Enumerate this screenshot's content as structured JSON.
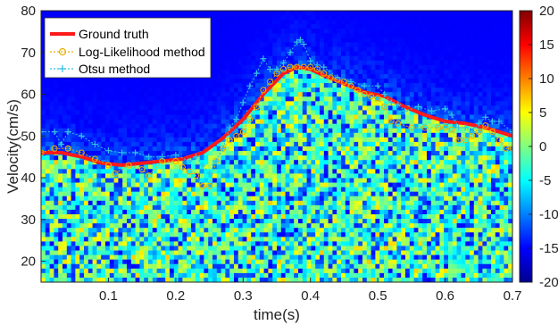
{
  "chart_data": {
    "type": "line",
    "background": "spectrogram heatmap",
    "xlabel": "time(s)",
    "ylabel": "Velocity(cm/s)",
    "xlim": [
      0.0,
      0.7
    ],
    "ylim": [
      15,
      80
    ],
    "x_ticks": [
      0.1,
      0.2,
      0.3,
      0.4,
      0.5,
      0.6,
      0.7
    ],
    "y_ticks": [
      20,
      30,
      40,
      50,
      60,
      70,
      80
    ],
    "colorbar": {
      "range": [
        -20,
        20
      ],
      "ticks": [
        20,
        15,
        10,
        5,
        0,
        -5,
        -10,
        -15,
        -20
      ],
      "colormap": "jet"
    },
    "legend_position": "top-left",
    "series": [
      {
        "name": "Ground truth",
        "color": "#ff1a1a",
        "style": "thick-line",
        "x": [
          0.0,
          0.03,
          0.06,
          0.09,
          0.12,
          0.15,
          0.18,
          0.21,
          0.24,
          0.27,
          0.3,
          0.33,
          0.36,
          0.38,
          0.4,
          0.42,
          0.45,
          0.48,
          0.51,
          0.54,
          0.57,
          0.6,
          0.63,
          0.66,
          0.7
        ],
        "y": [
          46,
          46,
          45,
          43.5,
          43,
          43.5,
          44,
          44.5,
          46,
          49.5,
          54,
          60,
          65,
          66.5,
          66,
          64.5,
          62.5,
          60.5,
          59.5,
          57,
          55,
          53.5,
          53,
          52,
          50
        ]
      },
      {
        "name": "Log-Likelihood method",
        "color": "#e8b000",
        "style": "circle-markers",
        "x": [
          0.0,
          0.02,
          0.04,
          0.06,
          0.08,
          0.1,
          0.11,
          0.13,
          0.15,
          0.16,
          0.18,
          0.2,
          0.21,
          0.22,
          0.23,
          0.24,
          0.25,
          0.26,
          0.27,
          0.28,
          0.29,
          0.3,
          0.31,
          0.32,
          0.33,
          0.34,
          0.35,
          0.36,
          0.37,
          0.38,
          0.39,
          0.4,
          0.41,
          0.42,
          0.43,
          0.44,
          0.45,
          0.46,
          0.47,
          0.48,
          0.49,
          0.5,
          0.51,
          0.52,
          0.53,
          0.55,
          0.57,
          0.59,
          0.6,
          0.61,
          0.62,
          0.63,
          0.64,
          0.65,
          0.66,
          0.67,
          0.68,
          0.69,
          0.7
        ],
        "y": [
          46,
          47,
          47,
          46,
          44.5,
          43,
          41,
          43,
          42,
          40.5,
          44,
          44,
          42.5,
          41.5,
          40.5,
          38,
          38,
          44,
          47,
          49,
          50,
          51,
          54,
          57,
          61,
          63,
          65,
          66,
          66.5,
          66.5,
          66.5,
          66.5,
          66,
          65,
          64,
          63.5,
          63,
          62,
          61,
          60,
          59.5,
          59,
          57,
          53.5,
          53,
          52,
          52,
          52,
          52,
          51.5,
          49,
          49,
          50,
          51,
          52.5,
          51,
          49,
          47,
          47
        ]
      },
      {
        "name": "Otsu method",
        "color": "#2ec4e6",
        "style": "plus-markers",
        "x": [
          0.0,
          0.02,
          0.03,
          0.04,
          0.06,
          0.08,
          0.1,
          0.12,
          0.14,
          0.16,
          0.18,
          0.2,
          0.22,
          0.23,
          0.24,
          0.25,
          0.26,
          0.27,
          0.28,
          0.29,
          0.3,
          0.31,
          0.32,
          0.33,
          0.34,
          0.35,
          0.36,
          0.37,
          0.38,
          0.385,
          0.39,
          0.4,
          0.41,
          0.42,
          0.44,
          0.46,
          0.48,
          0.5,
          0.51,
          0.52,
          0.53,
          0.54,
          0.56,
          0.58,
          0.6,
          0.61,
          0.62,
          0.63,
          0.64,
          0.65,
          0.66,
          0.67,
          0.68,
          0.7
        ],
        "y": [
          51,
          51,
          48,
          51,
          50,
          48,
          46.5,
          46,
          46,
          45,
          45,
          45.5,
          44,
          45,
          43,
          41,
          44,
          47,
          52,
          54,
          58,
          62,
          65,
          68.5,
          66,
          66,
          67.5,
          70,
          72.5,
          73,
          72,
          68,
          67,
          66.5,
          64,
          63,
          62,
          62,
          60,
          58,
          57.5,
          56,
          57,
          56,
          56.5,
          55,
          52,
          52,
          51,
          53,
          54.5,
          53.5,
          53.5,
          51
        ]
      }
    ]
  }
}
